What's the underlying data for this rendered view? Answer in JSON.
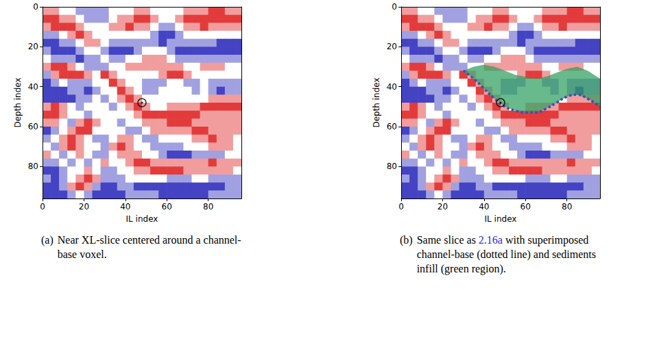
{
  "chart_data": [
    {
      "type": "heatmap",
      "xlabel": "IL index",
      "ylabel": "Depth index",
      "xlim": [
        0,
        96
      ],
      "ylim": [
        96,
        0
      ],
      "xticks": [
        0,
        20,
        40,
        60,
        80
      ],
      "yticks": [
        0,
        20,
        40,
        60,
        80
      ],
      "voxel": {
        "x": 48,
        "y": 48,
        "marker": "circle-dot"
      },
      "caption": {
        "label": "(a)",
        "text": "Near XL-slice centered around a channel-base voxel."
      }
    },
    {
      "type": "heatmap",
      "xlabel": "IL index",
      "ylabel": "Depth index",
      "xlim": [
        0,
        96
      ],
      "ylim": [
        96,
        0
      ],
      "xticks": [
        0,
        20,
        40,
        60,
        80
      ],
      "yticks": [
        0,
        20,
        40,
        60,
        80
      ],
      "voxel": {
        "x": 48,
        "y": 48,
        "marker": "circle-dot"
      },
      "channel_base": {
        "x": [
          30,
          35,
          40,
          45,
          50,
          55,
          60,
          65,
          70,
          75,
          80,
          85,
          90,
          96
        ],
        "y": [
          32,
          36,
          41,
          46,
          50,
          52,
          53,
          53,
          51,
          48,
          45,
          44,
          46,
          50
        ],
        "line_style": "dotted",
        "color": "#3a4cc0"
      },
      "infill": {
        "top": [
          32,
          30,
          29,
          30,
          32,
          34,
          35,
          36,
          35,
          33,
          31,
          30,
          32,
          36
        ],
        "color": "#2e9e5e"
      },
      "caption": {
        "label": "(b)",
        "text_before": "Same slice as",
        "ref": "2.16a",
        "text_after": "with superimposed channel-base (dotted line) and sediments infill (green region)."
      }
    }
  ],
  "slice": {
    "cell_size": 4,
    "value_range": [
      -1,
      1
    ],
    "colors": [
      "#1414b4",
      "#ffffff",
      "#dc0a0a"
    ],
    "cells": [
      [
        0.4,
        0.4,
        0,
        0,
        -0.4,
        -0.4,
        -0.4,
        -0.4,
        0,
        0,
        0,
        0.4,
        0.4,
        0,
        0,
        0,
        0,
        0.4,
        0.4,
        0.4,
        0.8,
        0.8,
        0.4,
        0.4
      ],
      [
        0.8,
        0.8,
        0.4,
        0.4,
        0,
        -0.4,
        -0.4,
        -0.4,
        0,
        0.4,
        0.4,
        0.8,
        0.8,
        0.4,
        0,
        0,
        0.4,
        0.8,
        0.8,
        0.8,
        0.8,
        0.8,
        0.8,
        0.8
      ],
      [
        0.4,
        0.8,
        0.8,
        0.8,
        0.4,
        0,
        0,
        0,
        0.4,
        0.4,
        0.8,
        0.4,
        0.4,
        0,
        -0.4,
        -0.4,
        0,
        0.4,
        0.4,
        0.8,
        0.4,
        0.4,
        0.4,
        0.4
      ],
      [
        -0.4,
        -0.4,
        0,
        0.4,
        0.8,
        0.4,
        0,
        0,
        0,
        0,
        0,
        0,
        0,
        -0.4,
        -0.8,
        -0.8,
        -0.4,
        0,
        0,
        0,
        0,
        0,
        0,
        0
      ],
      [
        -0.8,
        -0.8,
        -0.4,
        -0.4,
        0,
        0.4,
        0.4,
        0,
        -0.4,
        -0.4,
        -0.4,
        -0.4,
        -0.4,
        -0.4,
        -0.8,
        -0.4,
        -0.4,
        -0.4,
        -0.4,
        -0.4,
        -0.4,
        -0.8,
        -0.8,
        -0.8
      ],
      [
        -0.4,
        -0.8,
        -0.8,
        -0.8,
        -0.4,
        0,
        0,
        -0.4,
        -0.8,
        -0.8,
        -0.8,
        -0.4,
        0,
        0,
        0,
        -0.4,
        -0.8,
        -0.8,
        -0.8,
        -0.8,
        -0.8,
        -0.8,
        -0.8,
        -0.8
      ],
      [
        0,
        -0.4,
        -0.4,
        -0.4,
        -0.8,
        -0.4,
        -0.4,
        0,
        -0.4,
        -0.4,
        0,
        0,
        0.4,
        0.4,
        0.4,
        0,
        -0.4,
        -0.4,
        -0.4,
        -0.4,
        -0.4,
        -0.4,
        -0.4,
        -0.4
      ],
      [
        0.4,
        0.8,
        0.8,
        0.4,
        0,
        -0.4,
        -0.4,
        -0.4,
        0,
        0,
        0.4,
        0.4,
        0.4,
        0.4,
        0.4,
        0.4,
        0.4,
        0,
        0,
        0.4,
        0.4,
        0.4,
        0,
        0
      ],
      [
        -0.4,
        0.4,
        0.8,
        0.8,
        0.8,
        0.4,
        0,
        0.8,
        0.4,
        0,
        0,
        0,
        0,
        0,
        0.4,
        0.8,
        0.8,
        0.4,
        0,
        0,
        0,
        0,
        0,
        0
      ],
      [
        -0.8,
        -0.4,
        0,
        -0.4,
        -0.4,
        -0.4,
        0,
        0,
        0.8,
        0.4,
        0,
        0,
        -0.4,
        -0.4,
        -0.4,
        0,
        0,
        -0.4,
        -0.4,
        0,
        -0.4,
        -0.4,
        -0.4,
        -0.4
      ],
      [
        -0.8,
        -0.8,
        -0.8,
        -0.4,
        -0.4,
        -0.8,
        -0.4,
        0,
        0,
        0.8,
        0.4,
        0,
        -0.4,
        -0.4,
        0,
        0,
        0,
        0,
        -0.4,
        0,
        -0.4,
        -0.8,
        -0.4,
        -0.4
      ],
      [
        -0.8,
        -0.8,
        -0.8,
        -0.8,
        -0.4,
        -0.4,
        0,
        -0.4,
        0,
        0.4,
        0.8,
        0.4,
        0,
        0,
        0,
        0,
        0,
        0,
        0,
        0,
        0.4,
        0.4,
        0.4,
        0.4
      ],
      [
        0.4,
        0.8,
        0.4,
        0,
        -0.4,
        0,
        0,
        0,
        -0.4,
        0,
        0.4,
        0.8,
        0.4,
        0,
        0,
        0.4,
        0.4,
        0.4,
        0.4,
        0.8,
        0.8,
        0.8,
        0.8,
        0.8
      ],
      [
        0.8,
        0.8,
        0.4,
        0,
        0,
        -0.4,
        0,
        0,
        0,
        0,
        0,
        0.4,
        0.8,
        0.8,
        0.8,
        0.8,
        0.8,
        0.8,
        0.8,
        0.4,
        0.4,
        0.4,
        0.4,
        0.4
      ],
      [
        0.4,
        0.4,
        0,
        -0.4,
        0.4,
        0.8,
        0.4,
        0,
        0,
        -0.4,
        0,
        0,
        0.4,
        0.4,
        0.4,
        0.8,
        0.8,
        0.8,
        0.4,
        0.4,
        0.4,
        0.4,
        0.4,
        0.4
      ],
      [
        -0.8,
        -0.4,
        0,
        0.4,
        0.8,
        0.8,
        0,
        0,
        0,
        0,
        -0.4,
        -0.4,
        0,
        0.4,
        0.4,
        0.4,
        0.4,
        0.4,
        0.8,
        0.8,
        0.4,
        0.4,
        0.4,
        0.4
      ],
      [
        -0.4,
        0,
        0.4,
        0.8,
        0.4,
        0,
        -0.4,
        -0.4,
        0,
        0.4,
        0.4,
        0,
        -0.4,
        -0.4,
        0,
        0,
        0,
        0,
        0.4,
        0.4,
        0.8,
        0.4,
        0.4,
        0
      ],
      [
        0,
        -0.4,
        0.4,
        0.8,
        0.4,
        0,
        0,
        -0.4,
        0.4,
        0.8,
        0.4,
        0,
        0,
        -0.4,
        -0.4,
        -0.4,
        -0.4,
        0,
        0,
        0,
        0.4,
        0.4,
        0.4,
        0
      ],
      [
        0.4,
        0,
        -0.4,
        0,
        0.4,
        0,
        -0.4,
        -0.4,
        0,
        0.4,
        0.4,
        0.4,
        0,
        0,
        -0.4,
        -0.8,
        -0.8,
        -0.8,
        -0.4,
        -0.4,
        -0.4,
        -0.4,
        0,
        0
      ],
      [
        -0.4,
        -0.4,
        0,
        -0.4,
        0,
        -0.4,
        0,
        0.4,
        0,
        0,
        0.4,
        0.8,
        0.8,
        0.4,
        0.4,
        0.4,
        0.4,
        0.4,
        0.4,
        0.4,
        0.8,
        0.4,
        0.4,
        0.4
      ],
      [
        -0.8,
        -0.8,
        -0.4,
        0,
        0,
        0.4,
        0,
        -0.4,
        -0.4,
        0,
        0,
        0.4,
        0.4,
        0.8,
        0.8,
        0.8,
        0.8,
        0.4,
        0.4,
        0.4,
        0.4,
        0.4,
        0.4,
        0
      ],
      [
        -0.4,
        -0.8,
        -0.4,
        0,
        0.4,
        0.8,
        0.4,
        -0.4,
        -0.4,
        -0.4,
        0,
        0,
        0,
        0,
        0,
        -0.4,
        -0.4,
        -0.4,
        0,
        0,
        -0.4,
        -0.4,
        -0.4,
        -0.4
      ],
      [
        -0.8,
        -0.8,
        -0.4,
        0.4,
        0.8,
        0.4,
        -0.4,
        -0.8,
        -0.8,
        -0.4,
        -0.4,
        -0.8,
        -0.8,
        -0.8,
        -0.8,
        -0.8,
        -0.8,
        -0.8,
        -0.8,
        -0.8,
        -0.8,
        -0.8,
        -0.4,
        -0.4
      ],
      [
        -0.8,
        -0.8,
        -0.8,
        -0.4,
        0,
        -0.4,
        -0.8,
        -0.8,
        -0.8,
        -0.8,
        -0.4,
        -0.4,
        -0.4,
        -0.4,
        -0.8,
        -0.8,
        -0.8,
        -0.8,
        -0.8,
        -0.8,
        -0.4,
        -0.4,
        -0.4,
        -0.4
      ]
    ]
  }
}
